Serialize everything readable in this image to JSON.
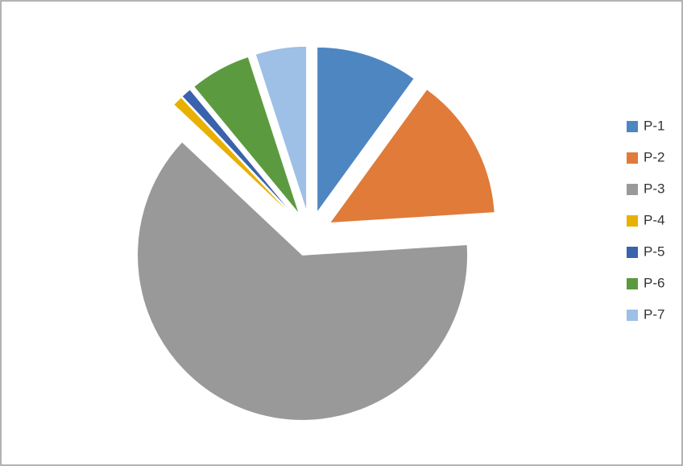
{
  "chart_data": {
    "type": "pie",
    "exploded": true,
    "legend": "right",
    "categories": [
      "P-1",
      "P-2",
      "P-3",
      "P-4",
      "P-5",
      "P-6",
      "P-7"
    ],
    "values": [
      10,
      14,
      63,
      1,
      1,
      6,
      5
    ],
    "colors": [
      "#4e86c2",
      "#e07b39",
      "#999999",
      "#e8b000",
      "#3a62ad",
      "#5c9a3f",
      "#9ebfe6"
    ]
  }
}
